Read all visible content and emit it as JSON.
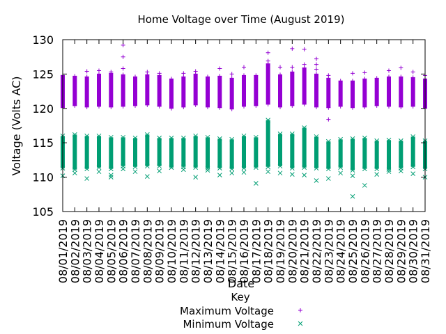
{
  "chart_data": {
    "type": "scatter",
    "title": "Home Voltage over Time (August 2019)",
    "xlabel": "Date",
    "ylabel": "Voltage (Volts AC)",
    "ylim": [
      105,
      130
    ],
    "yticks": [
      "105",
      "110",
      "115",
      "120",
      "125",
      "130"
    ],
    "categories": [
      "08/01/2019",
      "08/02/2019",
      "08/03/2019",
      "08/04/2019",
      "08/05/2019",
      "08/06/2019",
      "08/07/2019",
      "08/08/2019",
      "08/09/2019",
      "08/10/2019",
      "08/11/2019",
      "08/12/2019",
      "08/13/2019",
      "08/14/2019",
      "08/15/2019",
      "08/16/2019",
      "08/17/2019",
      "08/18/2019",
      "08/19/2019",
      "08/20/2019",
      "08/21/2019",
      "08/22/2019",
      "08/23/2019",
      "08/24/2019",
      "08/25/2019",
      "08/26/2019",
      "08/27/2019",
      "08/28/2019",
      "08/29/2019",
      "08/30/2019",
      "08/31/2019"
    ],
    "legend": {
      "title": "Key",
      "position": "bottom"
    },
    "series": [
      {
        "name": "Maximum Voltage",
        "marker": "plus",
        "color": "#9400d3",
        "band_low": [
          120.1,
          120.4,
          120.2,
          120.3,
          120.2,
          120.3,
          120.4,
          120.5,
          120.3,
          120.0,
          120.2,
          120.5,
          120.2,
          120.1,
          119.9,
          120.3,
          120.4,
          120.6,
          120.2,
          120.4,
          120.6,
          120.2,
          120.1,
          120.3,
          120.1,
          120.2,
          120.4,
          120.3,
          120.2,
          120.3,
          120.0
        ],
        "band_high": [
          124.8,
          124.7,
          124.6,
          125.0,
          125.1,
          124.9,
          124.6,
          124.9,
          124.8,
          124.3,
          124.6,
          125.0,
          124.6,
          124.7,
          124.4,
          124.8,
          124.8,
          126.5,
          124.9,
          125.3,
          125.9,
          125.0,
          124.4,
          124.0,
          124.0,
          124.3,
          124.4,
          124.6,
          124.6,
          124.5,
          124.3
        ],
        "outliers": [
          [
            1,
            124.8
          ],
          [
            3,
            125.4
          ],
          [
            4,
            125.5
          ],
          [
            5,
            125.3
          ],
          [
            6,
            129.2
          ],
          [
            6,
            127.5
          ],
          [
            6,
            125.8
          ],
          [
            8,
            125.3
          ],
          [
            9,
            125.1
          ],
          [
            11,
            125.1
          ],
          [
            12,
            125.4
          ],
          [
            14,
            125.8
          ],
          [
            15,
            125.0
          ],
          [
            16,
            126.0
          ],
          [
            18,
            128.1
          ],
          [
            18,
            126.9
          ],
          [
            19,
            126.0
          ],
          [
            20,
            128.7
          ],
          [
            20,
            126.0
          ],
          [
            21,
            128.6
          ],
          [
            21,
            126.4
          ],
          [
            22,
            127.2
          ],
          [
            22,
            126.4
          ],
          [
            22,
            125.7
          ],
          [
            23,
            118.4
          ],
          [
            23,
            124.8
          ],
          [
            25,
            125.1
          ],
          [
            26,
            125.2
          ],
          [
            28,
            125.5
          ],
          [
            29,
            125.9
          ],
          [
            30,
            125.3
          ],
          [
            31,
            124.8
          ]
        ]
      },
      {
        "name": "Minimum Voltage",
        "marker": "cross",
        "color": "#009e73",
        "band_low": [
          111.3,
          111.1,
          111.2,
          111.4,
          111.2,
          111.6,
          111.5,
          111.6,
          111.6,
          111.4,
          111.5,
          111.4,
          111.3,
          111.3,
          111.2,
          111.3,
          111.4,
          111.5,
          111.6,
          111.3,
          111.4,
          111.3,
          111.2,
          111.4,
          111.0,
          111.2,
          111.2,
          111.1,
          111.3,
          111.5,
          111.2
        ],
        "band_high": [
          116.0,
          116.2,
          116.0,
          116.0,
          115.8,
          115.8,
          115.7,
          116.2,
          115.7,
          115.7,
          115.7,
          116.0,
          115.8,
          115.6,
          115.5,
          116.0,
          115.8,
          118.3,
          116.3,
          116.3,
          117.2,
          115.9,
          115.2,
          115.5,
          115.6,
          115.7,
          115.3,
          115.4,
          115.3,
          115.9,
          115.3
        ],
        "outliers": [
          [
            1,
            110.2
          ],
          [
            2,
            110.6
          ],
          [
            3,
            109.8
          ],
          [
            4,
            110.8
          ],
          [
            5,
            110.0
          ],
          [
            5,
            110.3
          ],
          [
            6,
            111.2
          ],
          [
            7,
            110.8
          ],
          [
            8,
            110.1
          ],
          [
            9,
            110.9
          ],
          [
            10,
            111.4
          ],
          [
            11,
            111.1
          ],
          [
            12,
            110.0
          ],
          [
            13,
            111.0
          ],
          [
            14,
            110.3
          ],
          [
            15,
            110.6
          ],
          [
            16,
            110.7
          ],
          [
            17,
            109.1
          ],
          [
            18,
            110.8
          ],
          [
            19,
            110.6
          ],
          [
            20,
            110.4
          ],
          [
            21,
            110.3
          ],
          [
            22,
            109.5
          ],
          [
            23,
            109.8
          ],
          [
            24,
            110.6
          ],
          [
            25,
            107.2
          ],
          [
            25,
            110.2
          ],
          [
            26,
            108.8
          ],
          [
            27,
            110.4
          ],
          [
            28,
            110.8
          ],
          [
            29,
            110.9
          ],
          [
            30,
            110.5
          ],
          [
            31,
            110.0
          ]
        ]
      }
    ]
  }
}
